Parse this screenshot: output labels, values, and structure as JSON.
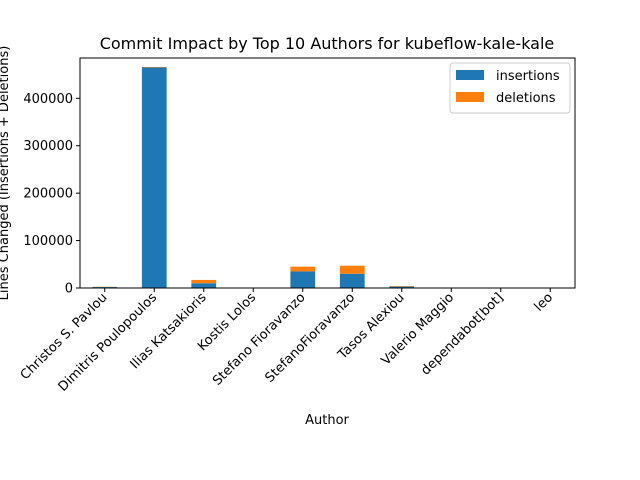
{
  "chart_data": {
    "type": "bar",
    "stacked": true,
    "title": "Commit Impact by Top 10 Authors for kubeflow-kale-kale",
    "xlabel": "Author",
    "ylabel": "Lines Changed (Insertions + Deletions)",
    "ylim": [
      0,
      485000
    ],
    "yticks": [
      0,
      100000,
      200000,
      300000,
      400000
    ],
    "ytick_labels": [
      "0",
      "100000",
      "200000",
      "300000",
      "400000"
    ],
    "grid": false,
    "legend_position": "top-right",
    "categories": [
      "Christos S. Pavlou",
      "Dimitris Poulopoulos",
      "Ilias Katsakioris",
      "Kostis Lolos",
      "Stefano Fioravanzo",
      "StefanoFioravanzo",
      "Tasos Alexiou",
      "Valerio Maggio",
      "dependabot[bot]",
      "leo"
    ],
    "series": [
      {
        "name": "insertions",
        "color": "#1f77b4",
        "values": [
          2000,
          465000,
          10000,
          300,
          35000,
          30000,
          3000,
          200,
          100,
          100
        ]
      },
      {
        "name": "deletions",
        "color": "#ff7f0e",
        "values": [
          500,
          1000,
          7000,
          100,
          10000,
          17000,
          1000,
          50,
          50,
          50
        ]
      }
    ]
  }
}
